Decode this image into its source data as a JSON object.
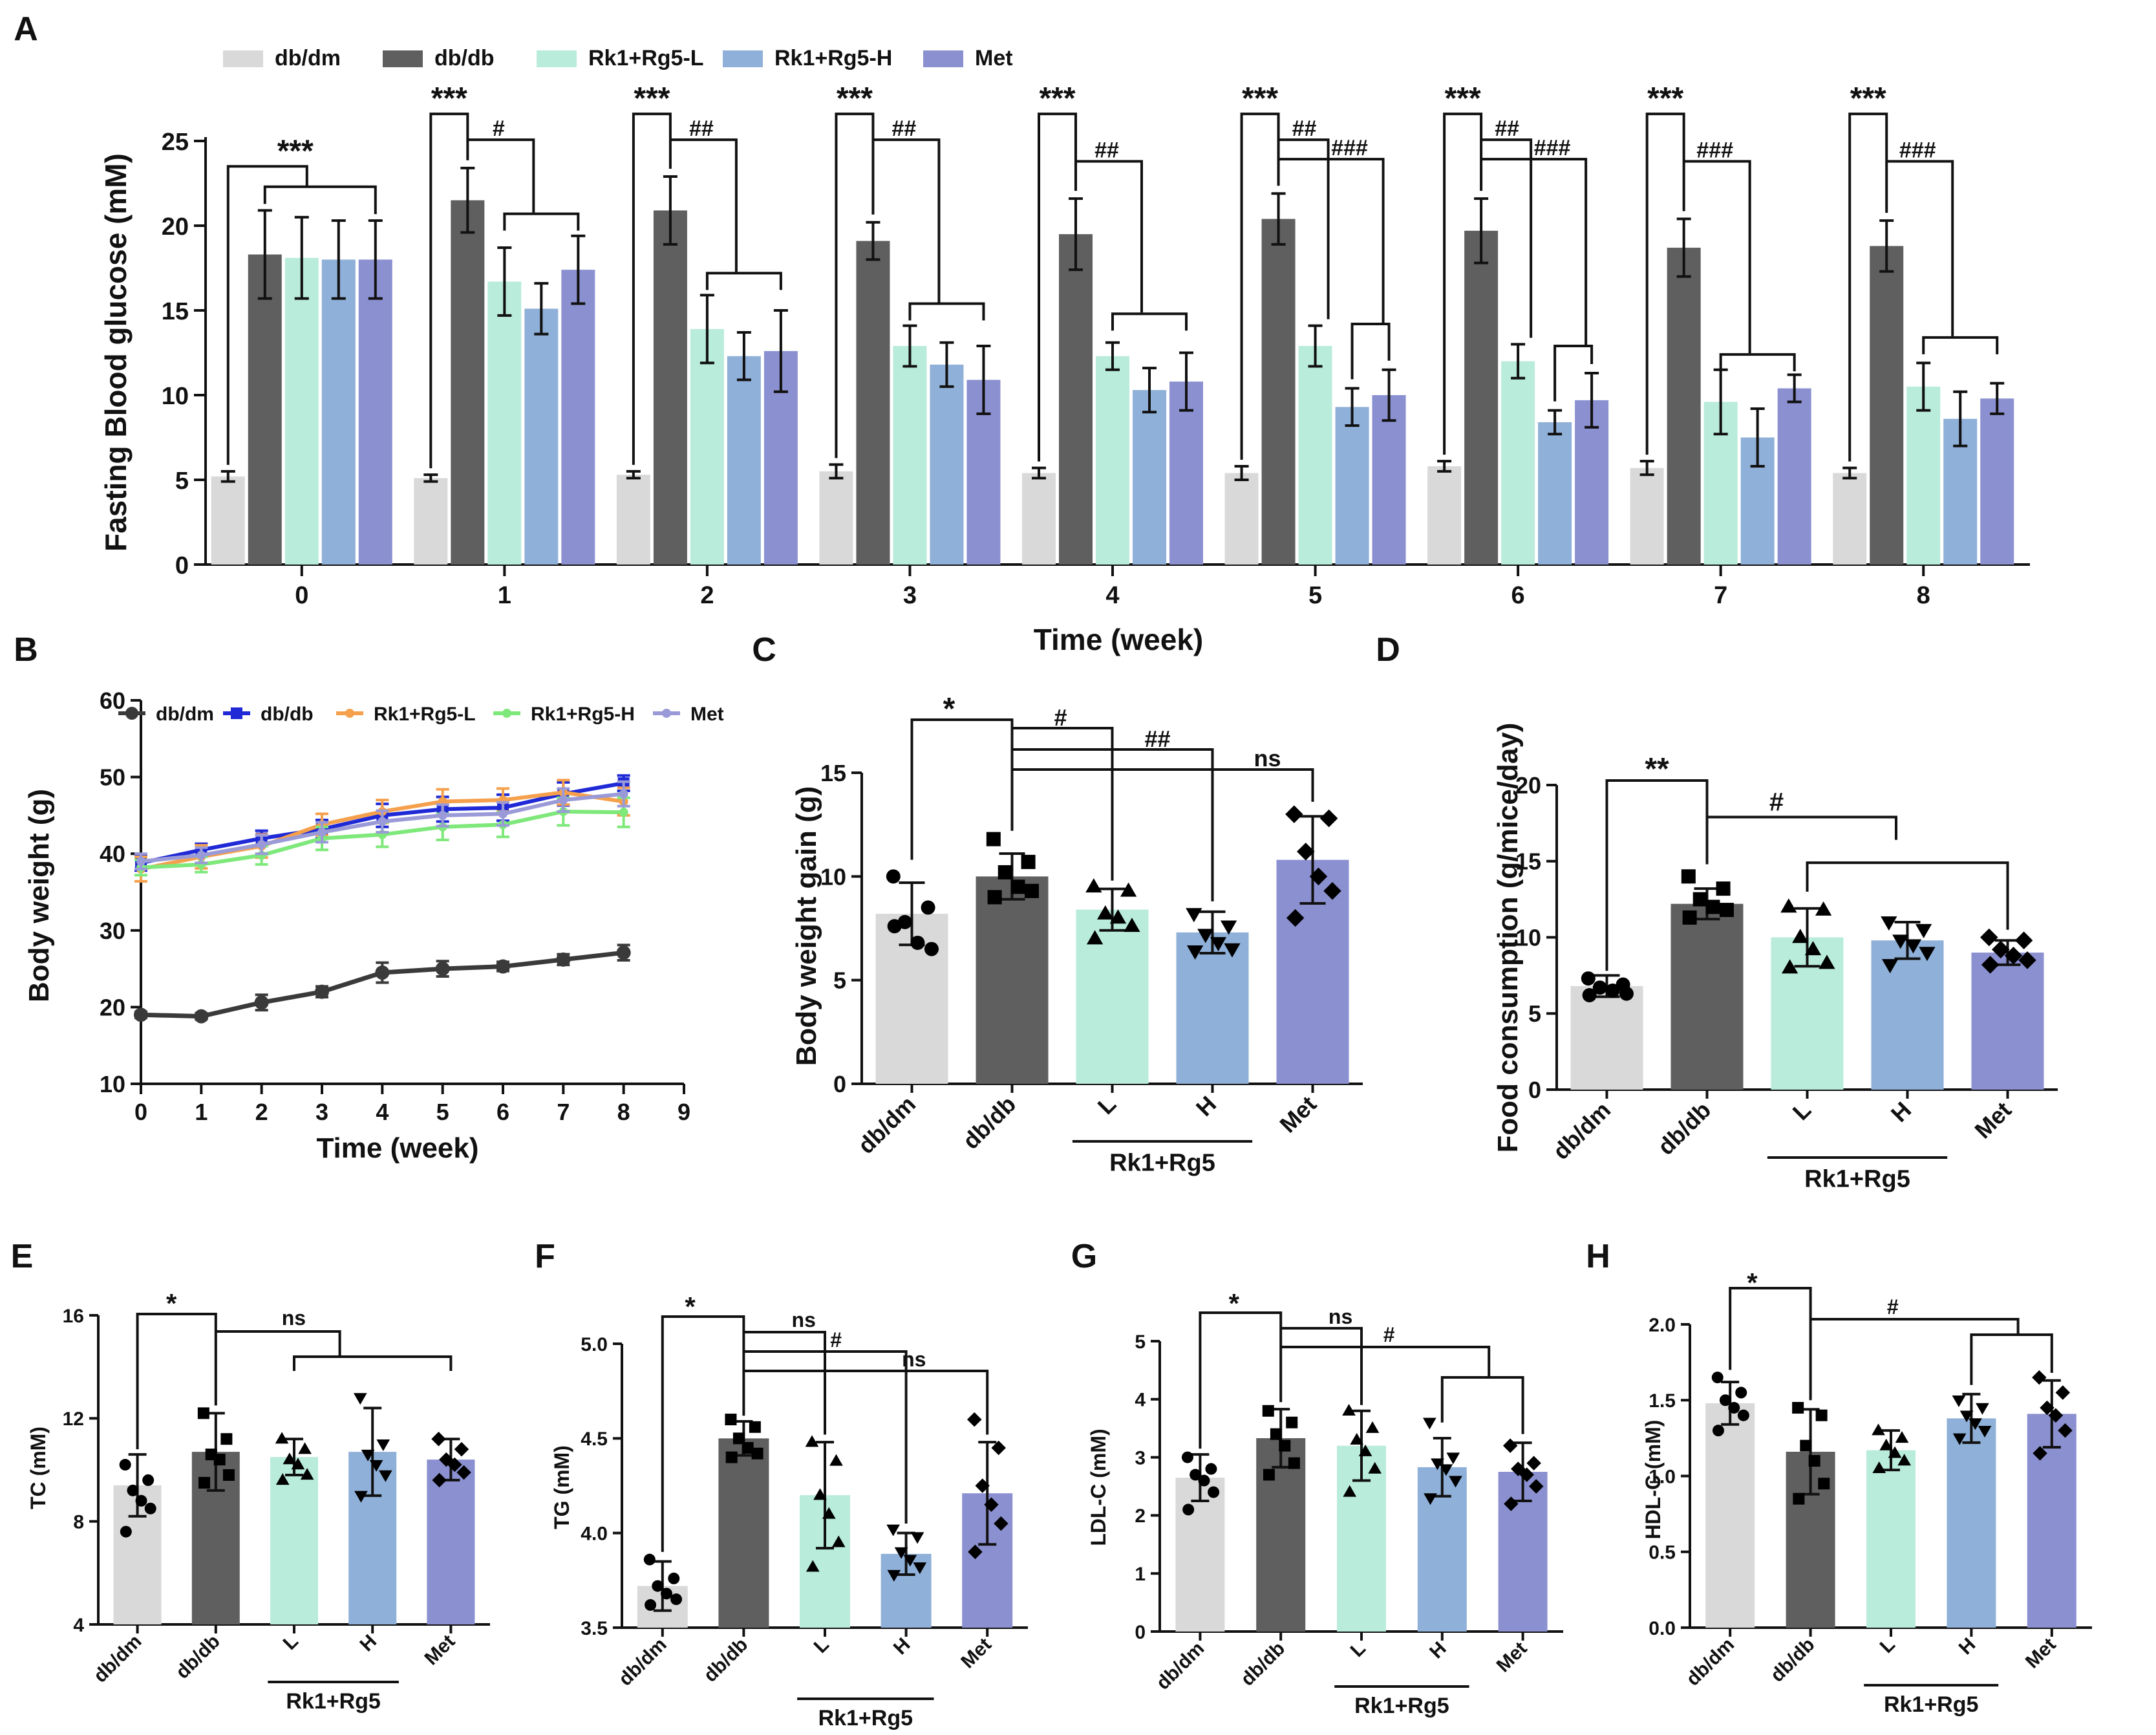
{
  "colors": {
    "db_dm": "#d9d9d9",
    "db_db": "#5f5f5f",
    "rk_l": "#b9ecda",
    "rk_h": "#8fb0d8",
    "met": "#8b90d0",
    "line_db_dm": "#3a3a3a",
    "line_db_db": "#1f29d6",
    "line_rk_l": "#f5a04c",
    "line_rk_h": "#7ee87a",
    "line_met": "#9a9ad8",
    "ink": "#111111"
  },
  "group_axis_label": "Rk1+Rg5",
  "chart_data": [
    {
      "id": "A",
      "panel_label": "A",
      "type": "bar",
      "title": "",
      "xlabel": "Time (week)",
      "ylabel": "Fasting Blood glucose (mM)",
      "categories": [
        "0",
        "1",
        "2",
        "3",
        "4",
        "5",
        "6",
        "7",
        "8"
      ],
      "ylim": [
        0,
        25
      ],
      "yticks": [
        "0",
        "5",
        "10",
        "15",
        "20",
        "25"
      ],
      "legend": [
        "db/dm",
        "db/db",
        "Rk1+Rg5-L",
        "Rk1+Rg5-H",
        "Met"
      ],
      "series": [
        {
          "name": "db/dm",
          "values": [
            5.2,
            5.1,
            5.3,
            5.5,
            5.4,
            5.4,
            5.8,
            5.7,
            5.4
          ],
          "errors": [
            0.3,
            0.2,
            0.2,
            0.4,
            0.3,
            0.4,
            0.3,
            0.4,
            0.3
          ]
        },
        {
          "name": "db/db",
          "values": [
            18.3,
            21.5,
            20.9,
            19.1,
            19.5,
            20.4,
            19.7,
            18.7,
            18.8
          ],
          "errors": [
            2.6,
            1.9,
            2.0,
            1.1,
            2.1,
            1.5,
            1.9,
            1.7,
            1.5
          ]
        },
        {
          "name": "Rk1+Rg5-L",
          "values": [
            18.1,
            16.7,
            13.9,
            12.9,
            12.3,
            12.9,
            12.0,
            9.6,
            10.5
          ],
          "errors": [
            2.4,
            2.0,
            2.0,
            1.2,
            0.8,
            1.2,
            1.0,
            1.9,
            1.4
          ]
        },
        {
          "name": "Rk1+Rg5-H",
          "values": [
            18.0,
            15.1,
            12.3,
            11.8,
            10.3,
            9.3,
            8.4,
            7.5,
            8.6
          ],
          "errors": [
            2.3,
            1.5,
            1.4,
            1.3,
            1.3,
            1.1,
            0.7,
            1.7,
            1.6
          ]
        },
        {
          "name": "Met",
          "values": [
            18.0,
            17.4,
            12.6,
            10.9,
            10.8,
            10.0,
            9.7,
            10.4,
            9.8
          ],
          "errors": [
            2.3,
            2.0,
            2.4,
            2.0,
            1.7,
            1.5,
            1.6,
            0.8,
            0.9
          ]
        }
      ],
      "annotations": [
        {
          "week": "0",
          "top": "***"
        },
        {
          "week": "1",
          "top": "***",
          "hash1": "#"
        },
        {
          "week": "2",
          "top": "***",
          "hash1": "##"
        },
        {
          "week": "3",
          "top": "***",
          "hash1": "##"
        },
        {
          "week": "4",
          "top": "***",
          "hash1": "##"
        },
        {
          "week": "5",
          "top": "***",
          "hash1": "##",
          "hash2": "###"
        },
        {
          "week": "6",
          "top": "***",
          "hash1": "##",
          "hash2": "###"
        },
        {
          "week": "7",
          "top": "***",
          "hash1": "###"
        },
        {
          "week": "8",
          "top": "***",
          "hash1": "###"
        }
      ]
    },
    {
      "id": "B",
      "panel_label": "B",
      "type": "line",
      "xlabel": "Time (week)",
      "ylabel": "Body weight (g)",
      "x": [
        0,
        1,
        2,
        3,
        4,
        5,
        6,
        7,
        8
      ],
      "xticks": [
        "0",
        "1",
        "2",
        "3",
        "4",
        "5",
        "6",
        "7",
        "8",
        "9"
      ],
      "xlim": [
        0,
        9
      ],
      "ylim": [
        10,
        60
      ],
      "yticks": [
        "10",
        "20",
        "30",
        "40",
        "50",
        "60"
      ],
      "legend": [
        "db/dm",
        "db/db",
        "Rk1+Rg5-L",
        "Rk1+Rg5-H",
        "Met"
      ],
      "series": [
        {
          "name": "db/dm",
          "values": [
            19.0,
            18.8,
            20.6,
            22.0,
            24.5,
            25.0,
            25.3,
            26.2,
            27.1
          ],
          "errors": [
            0.4,
            0.4,
            1.0,
            0.7,
            1.3,
            1.0,
            0.6,
            0.7,
            1.0
          ]
        },
        {
          "name": "db/db",
          "values": [
            38.8,
            40.5,
            42.0,
            43.2,
            45.0,
            45.8,
            46.0,
            47.8,
            49.2
          ],
          "errors": [
            1.0,
            0.8,
            1.0,
            1.2,
            1.5,
            1.6,
            1.7,
            1.5,
            1.0
          ]
        },
        {
          "name": "Rk1+Rg5-L",
          "values": [
            38.0,
            39.6,
            41.0,
            43.8,
            45.5,
            46.8,
            47.0,
            48.0,
            46.8
          ],
          "errors": [
            1.6,
            1.5,
            1.5,
            1.4,
            1.5,
            1.6,
            1.5,
            1.6,
            1.8
          ]
        },
        {
          "name": "Rk1+Rg5-H",
          "values": [
            38.2,
            38.6,
            39.8,
            42.0,
            42.5,
            43.5,
            43.8,
            45.5,
            45.4
          ],
          "errors": [
            1.0,
            1.0,
            1.2,
            1.5,
            1.6,
            1.7,
            1.6,
            1.8,
            1.9
          ]
        },
        {
          "name": "Met",
          "values": [
            39.0,
            39.8,
            41.2,
            42.8,
            44.2,
            45.0,
            45.2,
            47.0,
            47.8
          ],
          "errors": [
            1.0,
            1.0,
            1.2,
            1.3,
            1.4,
            1.4,
            1.5,
            1.5,
            1.6
          ]
        }
      ]
    },
    {
      "id": "C",
      "panel_label": "C",
      "type": "bar",
      "ylabel": "Body weight gain (g)",
      "categories": [
        "db/dm",
        "db/db",
        "L",
        "H",
        "Met"
      ],
      "ylim": [
        0,
        15
      ],
      "yticks": [
        "0",
        "5",
        "10",
        "15"
      ],
      "values": [
        8.2,
        10.0,
        8.4,
        7.3,
        10.8
      ],
      "errors": [
        1.5,
        1.1,
        1.0,
        1.0,
        2.1
      ],
      "points": [
        [
          10.0,
          8.5,
          7.8,
          6.8,
          6.5,
          7.6
        ],
        [
          11.8,
          10.7,
          10.2,
          9.5,
          9.3,
          9.0
        ],
        [
          9.5,
          9.3,
          8.2,
          8.0,
          7.6,
          7.0
        ],
        [
          8.2,
          7.6,
          7.2,
          6.8,
          6.5,
          6.4
        ],
        [
          13.0,
          12.8,
          11.2,
          10.0,
          9.3,
          8.0
        ]
      ],
      "markers": [
        "circle",
        "square",
        "triangle",
        "triangle-down",
        "diamond"
      ],
      "sig": [
        {
          "label": "*"
        },
        {
          "label": "#"
        },
        {
          "label": "##"
        },
        {
          "label": "ns"
        }
      ]
    },
    {
      "id": "D",
      "panel_label": "D",
      "type": "bar",
      "ylabel": "Food consumption (g/mice/day)",
      "categories": [
        "db/dm",
        "db/db",
        "L",
        "H",
        "Met"
      ],
      "ylim": [
        0,
        20
      ],
      "yticks": [
        "0",
        "5",
        "10",
        "15",
        "20"
      ],
      "values": [
        6.8,
        12.2,
        10.0,
        9.8,
        9.0
      ],
      "errors": [
        0.7,
        1.0,
        1.9,
        1.2,
        0.8
      ],
      "points": [
        [
          7.3,
          6.9,
          6.7,
          6.5,
          6.3,
          6.2
        ],
        [
          14.0,
          13.2,
          12.5,
          12.0,
          11.8,
          11.3
        ],
        [
          12.0,
          11.8,
          10.0,
          9.2,
          8.3,
          8.0
        ],
        [
          11.0,
          10.5,
          9.8,
          9.5,
          9.0,
          8.2
        ],
        [
          10.0,
          9.8,
          9.2,
          8.8,
          8.5,
          8.2
        ]
      ],
      "markers": [
        "circle",
        "square",
        "triangle",
        "triangle-down",
        "diamond"
      ],
      "sig": [
        {
          "label": "**"
        },
        {
          "label": "#"
        }
      ]
    },
    {
      "id": "E",
      "panel_label": "E",
      "type": "bar",
      "ylabel": "TC (mM)",
      "categories": [
        "db/dm",
        "db/db",
        "L",
        "H",
        "Met"
      ],
      "ylim": [
        4,
        16
      ],
      "yticks": [
        "4",
        "8",
        "12",
        "16"
      ],
      "values": [
        9.4,
        10.7,
        10.5,
        10.7,
        10.4
      ],
      "errors": [
        1.2,
        1.5,
        0.7,
        1.7,
        0.8
      ],
      "points": [
        [
          10.2,
          9.6,
          9.2,
          8.8,
          8.5,
          7.6
        ],
        [
          12.2,
          11.2,
          10.6,
          10.4,
          9.8,
          9.5
        ],
        [
          11.2,
          10.8,
          10.4,
          10.2,
          9.8,
          9.6
        ],
        [
          12.8,
          11.0,
          10.6,
          10.2,
          9.8,
          9.0
        ],
        [
          11.2,
          10.8,
          10.4,
          10.2,
          9.9,
          9.6
        ]
      ],
      "markers": [
        "circle",
        "square",
        "triangle",
        "triangle-down",
        "diamond"
      ],
      "sig": [
        {
          "label": "*"
        },
        {
          "label": "ns"
        }
      ]
    },
    {
      "id": "F",
      "panel_label": "F",
      "type": "bar",
      "ylabel": "TG (mM)",
      "categories": [
        "db/dm",
        "db/db",
        "L",
        "H",
        "Met"
      ],
      "ylim": [
        3.5,
        5.0
      ],
      "yticks": [
        "3.5",
        "4.0",
        "4.5",
        "5.0"
      ],
      "values": [
        3.72,
        4.5,
        4.2,
        3.89,
        4.21
      ],
      "errors": [
        0.13,
        0.09,
        0.28,
        0.11,
        0.27
      ],
      "points": [
        [
          3.86,
          3.76,
          3.72,
          3.68,
          3.65,
          3.62
        ],
        [
          4.6,
          4.56,
          4.5,
          4.45,
          4.42,
          4.4
        ],
        [
          4.48,
          4.38,
          4.2,
          4.1,
          3.95,
          3.82
        ],
        [
          4.02,
          3.98,
          3.9,
          3.86,
          3.82,
          3.78
        ],
        [
          4.6,
          4.45,
          4.25,
          4.15,
          4.05,
          3.9
        ]
      ],
      "markers": [
        "circle",
        "square",
        "triangle",
        "triangle-down",
        "diamond"
      ],
      "sig": [
        {
          "label": "*"
        },
        {
          "label": "ns"
        },
        {
          "label": "#"
        },
        {
          "label": "ns"
        }
      ]
    },
    {
      "id": "G",
      "panel_label": "G",
      "type": "bar",
      "ylabel": "LDL-C (mM)",
      "categories": [
        "db/dm",
        "db/db",
        "L",
        "H",
        "Met"
      ],
      "ylim": [
        0,
        5
      ],
      "yticks": [
        "0",
        "1",
        "2",
        "3",
        "4",
        "5"
      ],
      "values": [
        2.65,
        3.33,
        3.2,
        2.83,
        2.75
      ],
      "errors": [
        0.4,
        0.5,
        0.6,
        0.5,
        0.5
      ],
      "points": [
        [
          3.0,
          2.8,
          2.7,
          2.6,
          2.4,
          2.1
        ],
        [
          3.8,
          3.6,
          3.4,
          3.2,
          2.9,
          2.7
        ],
        [
          3.8,
          3.5,
          3.3,
          3.1,
          2.8,
          2.4
        ],
        [
          3.6,
          3.0,
          2.9,
          2.8,
          2.6,
          2.3
        ],
        [
          3.2,
          2.9,
          2.8,
          2.7,
          2.5,
          2.2
        ]
      ],
      "markers": [
        "circle",
        "square",
        "triangle",
        "triangle-down",
        "diamond"
      ],
      "sig": [
        {
          "label": "*"
        },
        {
          "label": "ns"
        },
        {
          "label": "#"
        }
      ]
    },
    {
      "id": "H",
      "panel_label": "H",
      "type": "bar",
      "ylabel": "HDL-C (mM)",
      "categories": [
        "db/dm",
        "db/db",
        "L",
        "H",
        "Met"
      ],
      "ylim": [
        0.0,
        2.0
      ],
      "yticks": [
        "0.0",
        "0.5",
        "1.0",
        "1.5",
        "2.0"
      ],
      "values": [
        1.48,
        1.16,
        1.17,
        1.38,
        1.41
      ],
      "errors": [
        0.14,
        0.28,
        0.13,
        0.16,
        0.22
      ],
      "points": [
        [
          1.65,
          1.55,
          1.5,
          1.45,
          1.4,
          1.3
        ],
        [
          1.45,
          1.4,
          1.2,
          1.1,
          0.95,
          0.85
        ],
        [
          1.3,
          1.25,
          1.2,
          1.15,
          1.1,
          1.05
        ],
        [
          1.5,
          1.45,
          1.4,
          1.35,
          1.3,
          1.25
        ],
        [
          1.65,
          1.55,
          1.45,
          1.4,
          1.3,
          1.15
        ]
      ],
      "markers": [
        "circle",
        "square",
        "triangle",
        "triangle-down",
        "diamond"
      ],
      "sig": [
        {
          "label": "*"
        },
        {
          "label": "#"
        }
      ]
    }
  ]
}
